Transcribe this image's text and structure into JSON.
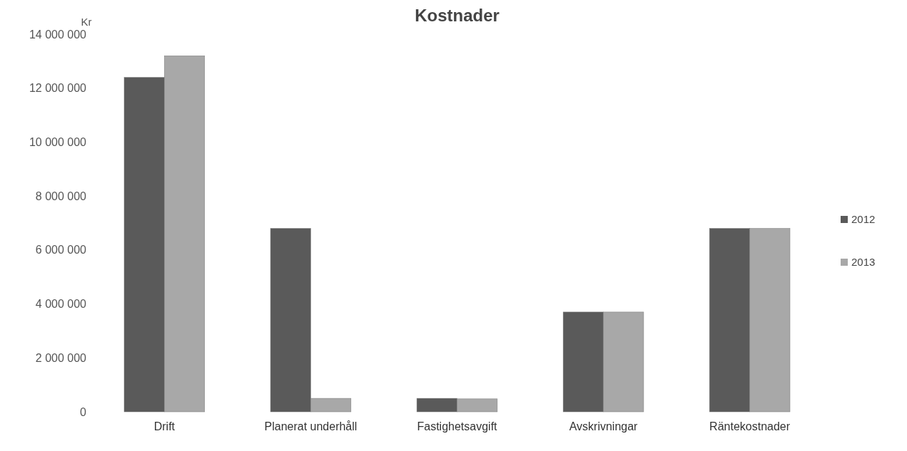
{
  "chart_data": {
    "type": "bar",
    "title": "Kostnader",
    "ylabel": "Kr",
    "categories": [
      "Drift",
      "Planerat underhåll",
      "Fastighetsavgift",
      "Avskrivningar",
      "Räntekostnader"
    ],
    "series": [
      {
        "name": "2012",
        "color": "#5a5a5a",
        "values": [
          12400000,
          6800000,
          500000,
          3700000,
          6800000
        ]
      },
      {
        "name": "2013",
        "color": "#a8a8a8",
        "values": [
          13200000,
          500000,
          480000,
          3700000,
          6800000
        ]
      }
    ],
    "ylim": [
      0,
      14000000
    ],
    "yticks": [
      {
        "value": 0,
        "label": "0"
      },
      {
        "value": 2000000,
        "label": "2 000 000"
      },
      {
        "value": 4000000,
        "label": "4 000 000"
      },
      {
        "value": 6000000,
        "label": "6 000 000"
      },
      {
        "value": 8000000,
        "label": "8 000 000"
      },
      {
        "value": 10000000,
        "label": "10 000 000"
      },
      {
        "value": 12000000,
        "label": "12 000 000"
      },
      {
        "value": 14000000,
        "label": "14 000 000"
      }
    ],
    "grid": false,
    "legend": "right"
  }
}
